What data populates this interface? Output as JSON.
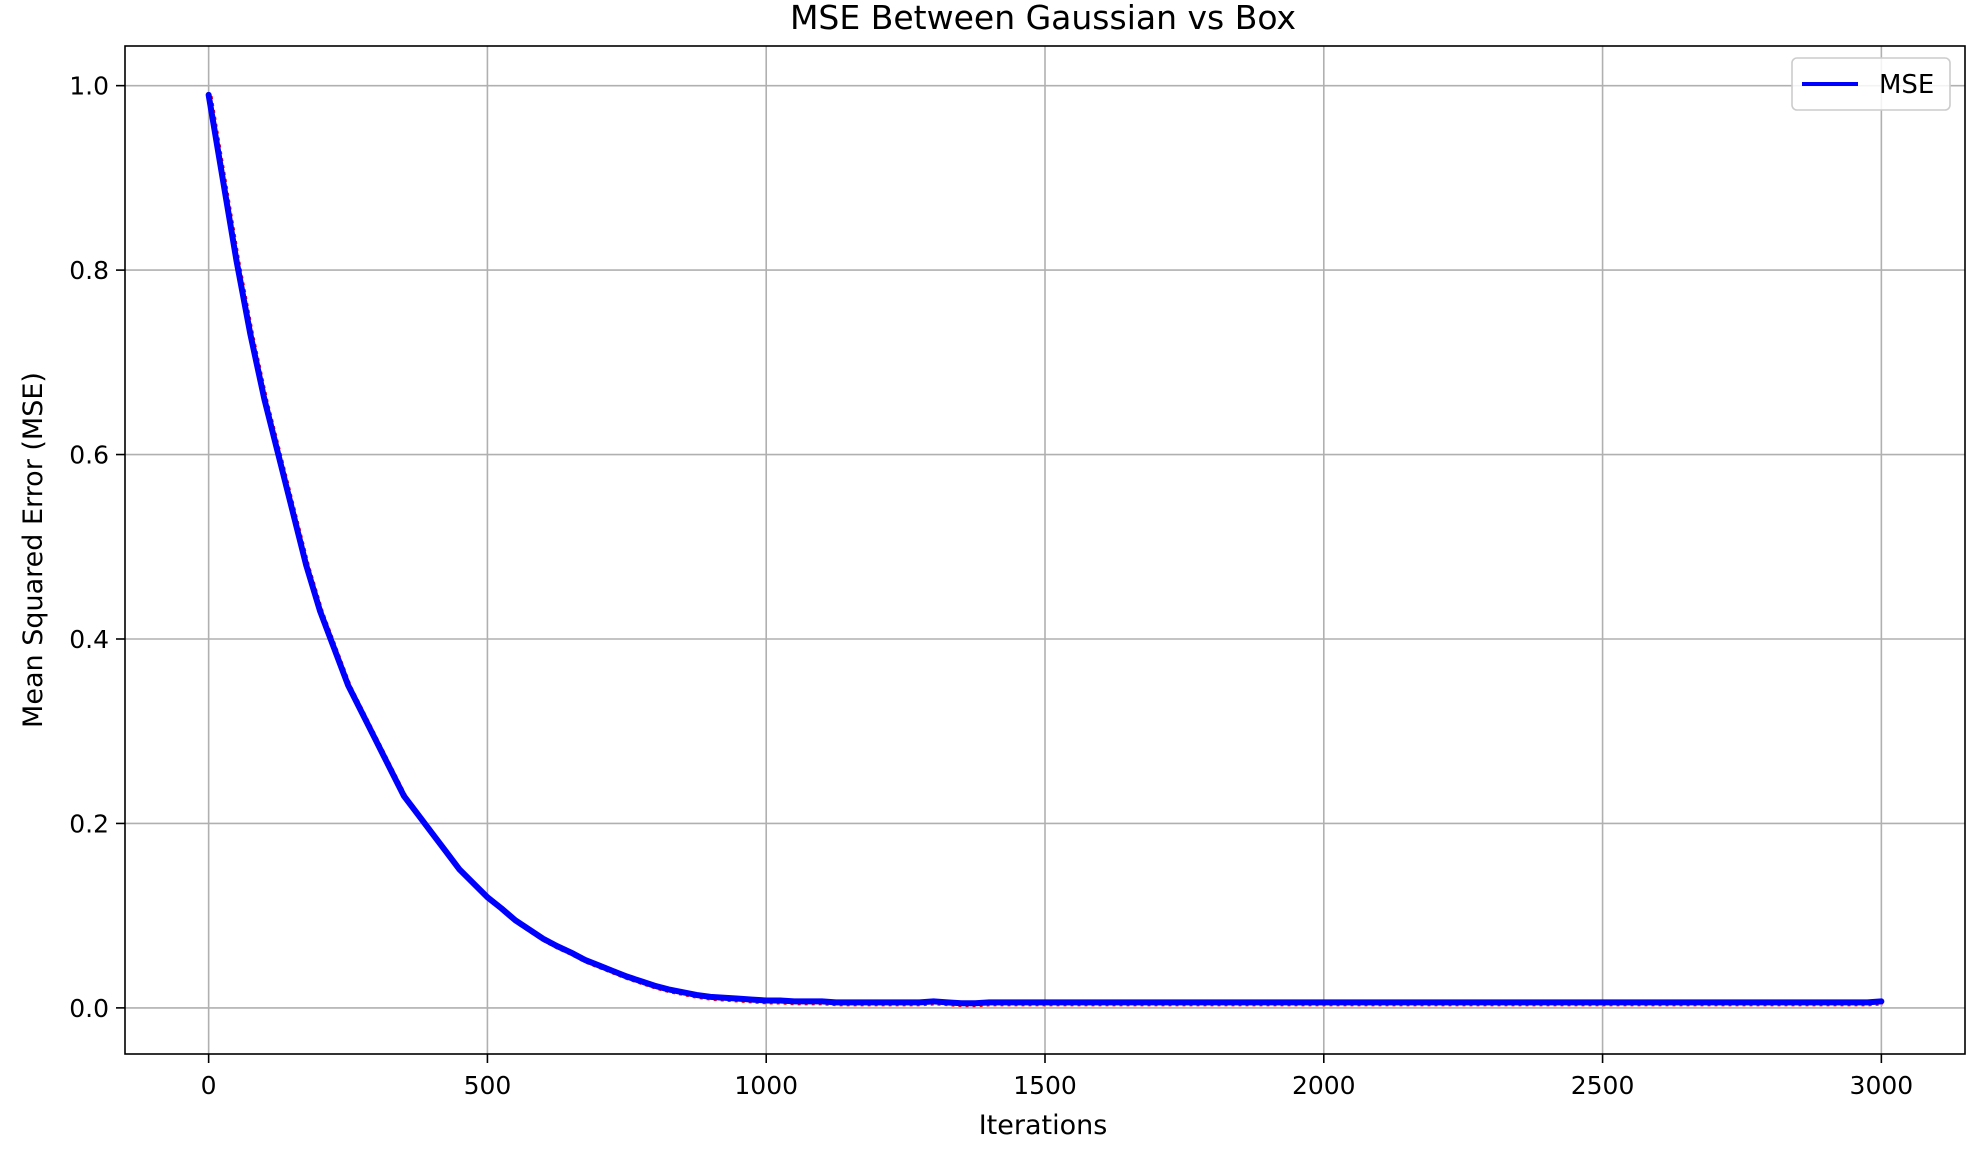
{
  "chart_data": {
    "type": "line",
    "title": "MSE Between Gaussian vs Box",
    "xlabel": "Iterations",
    "ylabel": "Mean Squared Error (MSE)",
    "xlim": [
      -150,
      3150
    ],
    "ylim": [
      -0.05,
      1.043
    ],
    "x_ticks": [
      0,
      500,
      1000,
      1500,
      2000,
      2500,
      3000
    ],
    "x_tick_labels": [
      "0",
      "500",
      "1000",
      "1500",
      "2000",
      "2500",
      "3000"
    ],
    "y_ticks": [
      0.0,
      0.2,
      0.4,
      0.6,
      0.8,
      1.0
    ],
    "y_tick_labels": [
      "0.0",
      "0.2",
      "0.4",
      "0.6",
      "0.8",
      "1.0"
    ],
    "grid": true,
    "legend_position": "top-right",
    "series": [
      {
        "name": "MSE",
        "color": "#0000ff",
        "underlay_color": "#ff0000",
        "x": [
          0,
          25,
          50,
          75,
          100,
          125,
          150,
          175,
          200,
          225,
          250,
          275,
          300,
          325,
          350,
          375,
          400,
          425,
          450,
          475,
          500,
          525,
          550,
          575,
          600,
          625,
          650,
          675,
          700,
          725,
          750,
          775,
          800,
          825,
          850,
          875,
          900,
          925,
          950,
          975,
          1000,
          1025,
          1050,
          1075,
          1100,
          1125,
          1150,
          1175,
          1200,
          1225,
          1250,
          1275,
          1300,
          1325,
          1350,
          1375,
          1400,
          1425,
          1450,
          1475,
          1500,
          1525,
          1550,
          1575,
          1600,
          1625,
          1650,
          1675,
          1700,
          1725,
          1750,
          1775,
          1800,
          1825,
          1850,
          1875,
          1900,
          1925,
          1950,
          1975,
          2000,
          2025,
          2050,
          2075,
          2100,
          2125,
          2150,
          2175,
          2200,
          2225,
          2250,
          2275,
          2300,
          2325,
          2350,
          2375,
          2400,
          2425,
          2450,
          2475,
          2500,
          2525,
          2550,
          2575,
          2600,
          2625,
          2650,
          2675,
          2700,
          2725,
          2750,
          2775,
          2800,
          2825,
          2850,
          2875,
          2900,
          2925,
          2950,
          2975,
          3000
        ],
        "values": [
          0.99,
          0.9,
          0.81,
          0.73,
          0.66,
          0.6,
          0.54,
          0.48,
          0.43,
          0.39,
          0.35,
          0.32,
          0.29,
          0.26,
          0.23,
          0.21,
          0.19,
          0.17,
          0.15,
          0.135,
          0.12,
          0.108,
          0.095,
          0.085,
          0.075,
          0.067,
          0.06,
          0.052,
          0.046,
          0.04,
          0.034,
          0.029,
          0.024,
          0.02,
          0.017,
          0.014,
          0.012,
          0.011,
          0.01,
          0.009,
          0.008,
          0.008,
          0.007,
          0.007,
          0.007,
          0.006,
          0.006,
          0.006,
          0.006,
          0.006,
          0.006,
          0.006,
          0.007,
          0.006,
          0.005,
          0.005,
          0.006,
          0.006,
          0.006,
          0.006,
          0.006,
          0.006,
          0.006,
          0.006,
          0.006,
          0.006,
          0.006,
          0.006,
          0.006,
          0.006,
          0.006,
          0.006,
          0.006,
          0.006,
          0.006,
          0.006,
          0.006,
          0.006,
          0.006,
          0.006,
          0.006,
          0.006,
          0.006,
          0.006,
          0.006,
          0.006,
          0.006,
          0.006,
          0.006,
          0.006,
          0.006,
          0.006,
          0.006,
          0.006,
          0.006,
          0.006,
          0.006,
          0.006,
          0.006,
          0.006,
          0.006,
          0.006,
          0.006,
          0.006,
          0.006,
          0.006,
          0.006,
          0.006,
          0.006,
          0.006,
          0.006,
          0.006,
          0.006,
          0.006,
          0.006,
          0.006,
          0.006,
          0.006,
          0.006,
          0.006,
          0.007
        ]
      }
    ]
  }
}
